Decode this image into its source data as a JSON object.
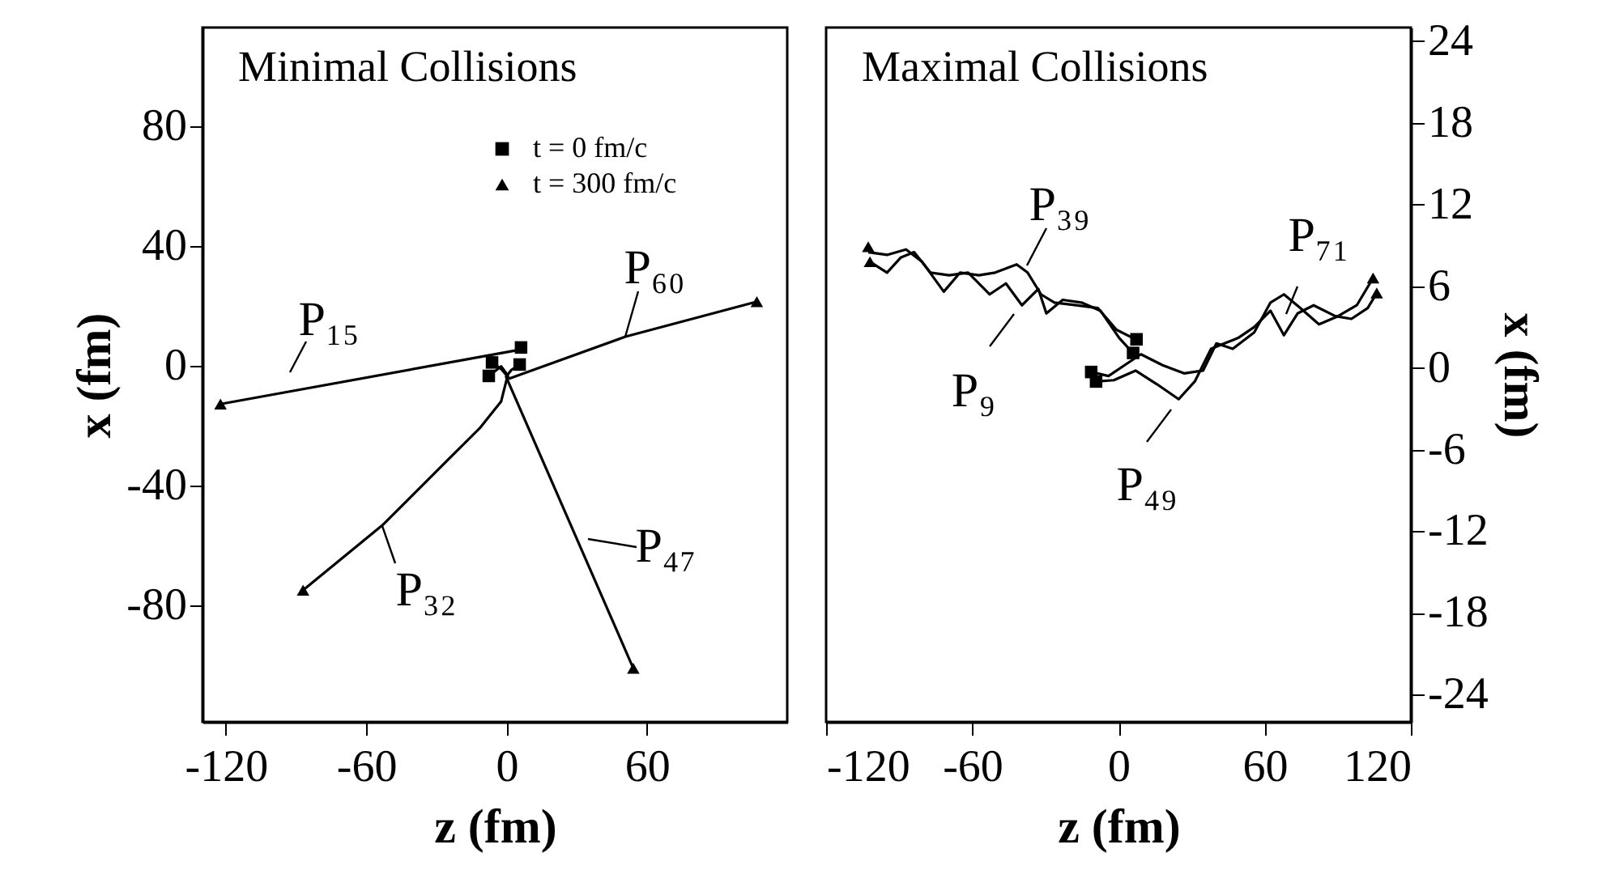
{
  "chart_data": [
    {
      "type": "line",
      "title": "Minimal Collisions",
      "xlabel": "z (fm)",
      "ylabel": "x (fm)",
      "xlim": [
        -130,
        120
      ],
      "xticks": [
        -120,
        -60,
        0,
        60
      ],
      "ylim": [
        -119,
        113
      ],
      "yticks": [
        -80,
        -40,
        0,
        40,
        80
      ],
      "grid": false,
      "legend": "top right",
      "line_style": "solid",
      "series": [
        {
          "color": "#000000",
          "x": [
            -122.3,
            4.7,
            6.2
          ],
          "values": [
            -12.8,
            5.2,
            6.1
          ]
        },
        {
          "color": "#000000",
          "x": [
            -6.2,
            -2.3,
            1.2,
            50.8,
            107.0
          ],
          "values": [
            1.1,
            -1.1,
            -4.3,
            9.7,
            21.4
          ]
        },
        {
          "color": "#000000",
          "x": [
            -7.6,
            -2.3,
            0.5,
            -2.3,
            -11.5,
            -25.4,
            -53.1,
            -87.0
          ],
          "values": [
            -3.4,
            -0.2,
            -3.2,
            -11.9,
            -20.9,
            -31.7,
            -53.3,
            -75.0
          ]
        },
        {
          "color": "#000000",
          "x": [
            5.6,
            2.1,
            -0.2,
            54.2
          ],
          "values": [
            0.4,
            -1.4,
            -3.7,
            -101.1
          ]
        },
        {
          "name": "t = 0 fm/c",
          "type": "scatter",
          "marker": "square",
          "color": "#000000",
          "x": [
            6.2,
            -6.2,
            5.6,
            -7.6
          ],
          "values": [
            6.1,
            1.1,
            0.4,
            -3.4
          ]
        },
        {
          "name": "t = 300 fm/c",
          "type": "scatter",
          "marker": "triangle",
          "color": "#000000",
          "x": [
            -122.3,
            107.0,
            -87.0,
            54.2
          ],
          "values": [
            -12.8,
            21.4,
            -75.0,
            -101.1
          ]
        }
      ],
      "annotations": [
        "P₁₅",
        "P₆₀",
        "P₃₂",
        "P₄₇"
      ]
    },
    {
      "type": "line",
      "title": "Maximal Collisions",
      "xlabel": "z (fm)",
      "y2label": "x (fm)",
      "xlim": [
        -120,
        120
      ],
      "xticks": [
        -120,
        -60,
        0,
        60,
        120
      ],
      "y2lim": [
        -26,
        25
      ],
      "y2ticks": [
        -24,
        -18,
        -12,
        -6,
        0,
        6,
        12,
        18,
        24
      ],
      "grid": false,
      "line_style": "solid",
      "series": [
        {
          "color": "#000000",
          "axis": "y2",
          "x": [
            -102.7,
            -95.0,
            -87.2,
            -80.6,
            -71.7,
            -65.0,
            -57.3,
            -50.6,
            -41.8,
            -37.3,
            -31.8,
            -26.3,
            -17.4,
            -8.5,
            -0.8,
            5.9,
            7.4
          ],
          "values": [
            8.5,
            8.3,
            8.7,
            7.8,
            5.6,
            7.0,
            6.8,
            7.0,
            7.6,
            7.0,
            5.4,
            4.8,
            4.6,
            4.4,
            2.8,
            2.2,
            2.1
          ]
        },
        {
          "color": "#000000",
          "axis": "y2",
          "x": [
            -102.0,
            -95.0,
            -89.4,
            -83.9,
            -77.2,
            -69.5,
            -61.7,
            -52.9,
            -46.2,
            -39.6,
            -32.9,
            -29.6,
            -22.9,
            -15.2,
            -7.4,
            0.3,
            5.9
          ],
          "values": [
            7.8,
            7.0,
            8.1,
            8.5,
            7.0,
            6.8,
            7.0,
            5.4,
            6.2,
            4.6,
            5.8,
            4.0,
            5.0,
            4.8,
            4.2,
            2.2,
            1.1
          ]
        },
        {
          "color": "#000000",
          "axis": "y2",
          "x": [
            -9.2,
            -1.9,
            7.0,
            15.8,
            24.7,
            31.3,
            38.0,
            43.5,
            49.1,
            55.7,
            62.4,
            67.9,
            73.5,
            80.1,
            89.0,
            95.6,
            102.3,
            106.0
          ],
          "values": [
            -1.0,
            -0.9,
            -0.2,
            -1.2,
            -2.3,
            -1.0,
            1.4,
            1.8,
            2.2,
            3.0,
            4.2,
            2.4,
            4.0,
            4.6,
            3.8,
            3.6,
            4.4,
            5.5
          ]
        },
        {
          "color": "#000000",
          "axis": "y2",
          "x": [
            -11.2,
            -4.1,
            2.5,
            9.2,
            18.1,
            26.9,
            34.7,
            40.2,
            46.9,
            55.7,
            62.4,
            67.9,
            74.6,
            82.3,
            90.1,
            97.8,
            104.5
          ],
          "values": [
            -0.3,
            -0.6,
            0.2,
            1.0,
            0.2,
            -0.4,
            -0.2,
            1.8,
            1.4,
            2.6,
            4.8,
            5.4,
            4.4,
            3.2,
            3.8,
            4.6,
            6.6
          ]
        },
        {
          "type": "scatter",
          "marker": "square",
          "color": "#000000",
          "axis": "y2",
          "x": [
            7.4,
            6.0,
            -11.2,
            -9.2
          ],
          "values": [
            2.1,
            1.1,
            -0.3,
            -1.0
          ]
        },
        {
          "type": "scatter",
          "marker": "triangle",
          "color": "#000000",
          "axis": "y2",
          "x": [
            -102.7,
            -102.0,
            104.5,
            106.0
          ],
          "values": [
            8.9,
            7.8,
            6.6,
            5.5
          ]
        }
      ],
      "annotations": [
        "P₃₉",
        "P₉",
        "P₄₉",
        "P₇₁"
      ]
    }
  ]
}
